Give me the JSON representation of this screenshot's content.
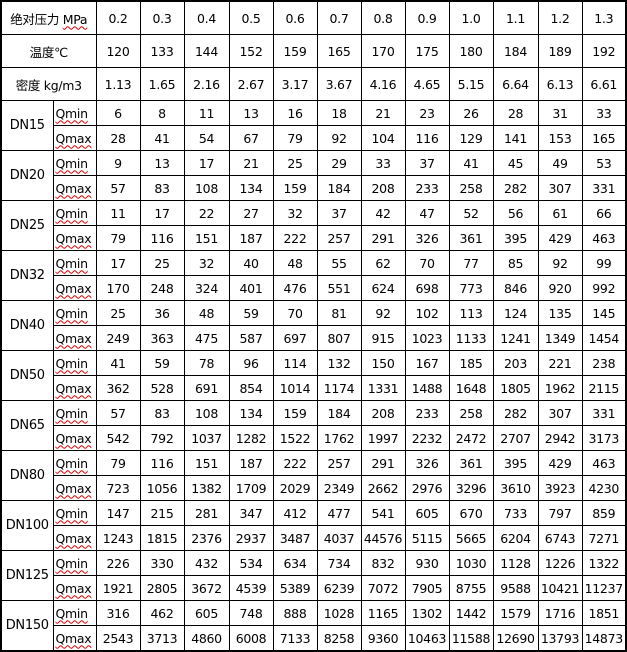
{
  "header": {
    "pressure_label_cn": "绝对压力",
    "pressure_unit": "MPa",
    "pressure": [
      "0.2",
      "0.3",
      "0.4",
      "0.5",
      "0.6",
      "0.7",
      "0.8",
      "0.9",
      "1.0",
      "1.1",
      "1.2",
      "1.3"
    ],
    "temperature_label": "温度℃",
    "temperature": [
      "120",
      "133",
      "144",
      "152",
      "159",
      "165",
      "170",
      "175",
      "180",
      "184",
      "189",
      "192"
    ],
    "density_label": "密度 kg/m3",
    "density": [
      "1.13",
      "1.65",
      "2.16",
      "2.67",
      "3.17",
      "3.67",
      "4.16",
      "4.65",
      "5.15",
      "6.64",
      "6.13",
      "6.61"
    ]
  },
  "qmin_label": "Qmin",
  "qmax_label": "Qmax",
  "rows": [
    {
      "dn": "DN15",
      "qmin": [
        "6",
        "8",
        "11",
        "13",
        "16",
        "18",
        "21",
        "23",
        "26",
        "28",
        "31",
        "33"
      ],
      "qmax": [
        "28",
        "41",
        "54",
        "67",
        "79",
        "92",
        "104",
        "116",
        "129",
        "141",
        "153",
        "165"
      ]
    },
    {
      "dn": "DN20",
      "qmin": [
        "9",
        "13",
        "17",
        "21",
        "25",
        "29",
        "33",
        "37",
        "41",
        "45",
        "49",
        "53"
      ],
      "qmax": [
        "57",
        "83",
        "108",
        "134",
        "159",
        "184",
        "208",
        "233",
        "258",
        "282",
        "307",
        "331"
      ]
    },
    {
      "dn": "DN25",
      "qmin": [
        "11",
        "17",
        "22",
        "27",
        "32",
        "37",
        "42",
        "47",
        "52",
        "56",
        "61",
        "66"
      ],
      "qmax": [
        "79",
        "116",
        "151",
        "187",
        "222",
        "257",
        "291",
        "326",
        "361",
        "395",
        "429",
        "463"
      ]
    },
    {
      "dn": "DN32",
      "qmin": [
        "17",
        "25",
        "32",
        "40",
        "48",
        "55",
        "62",
        "70",
        "77",
        "85",
        "92",
        "99"
      ],
      "qmax": [
        "170",
        "248",
        "324",
        "401",
        "476",
        "551",
        "624",
        "698",
        "773",
        "846",
        "920",
        "992"
      ]
    },
    {
      "dn": "DN40",
      "qmin": [
        "25",
        "36",
        "48",
        "59",
        "70",
        "81",
        "92",
        "102",
        "113",
        "124",
        "135",
        "145"
      ],
      "qmax": [
        "249",
        "363",
        "475",
        "587",
        "697",
        "807",
        "915",
        "1023",
        "1133",
        "1241",
        "1349",
        "1454"
      ]
    },
    {
      "dn": "DN50",
      "qmin": [
        "41",
        "59",
        "78",
        "96",
        "114",
        "132",
        "150",
        "167",
        "185",
        "203",
        "221",
        "238"
      ],
      "qmax": [
        "362",
        "528",
        "691",
        "854",
        "1014",
        "1174",
        "1331",
        "1488",
        "1648",
        "1805",
        "1962",
        "2115"
      ]
    },
    {
      "dn": "DN65",
      "qmin": [
        "57",
        "83",
        "108",
        "134",
        "159",
        "184",
        "208",
        "233",
        "258",
        "282",
        "307",
        "331"
      ],
      "qmax": [
        "542",
        "792",
        "1037",
        "1282",
        "1522",
        "1762",
        "1997",
        "2232",
        "2472",
        "2707",
        "2942",
        "3173"
      ]
    },
    {
      "dn": "DN80",
      "qmin": [
        "79",
        "116",
        "151",
        "187",
        "222",
        "257",
        "291",
        "326",
        "361",
        "395",
        "429",
        "463"
      ],
      "qmax": [
        "723",
        "1056",
        "1382",
        "1709",
        "2029",
        "2349",
        "2662",
        "2976",
        "3296",
        "3610",
        "3923",
        "4230"
      ]
    },
    {
      "dn": "DN100",
      "qmin": [
        "147",
        "215",
        "281",
        "347",
        "412",
        "477",
        "541",
        "605",
        "670",
        "733",
        "797",
        "859"
      ],
      "qmax": [
        "1243",
        "1815",
        "2376",
        "2937",
        "3487",
        "4037",
        "44576",
        "5115",
        "5665",
        "6204",
        "6743",
        "7271"
      ]
    },
    {
      "dn": "DN125",
      "qmin": [
        "226",
        "330",
        "432",
        "534",
        "634",
        "734",
        "832",
        "930",
        "1030",
        "1128",
        "1226",
        "1322"
      ],
      "qmax": [
        "1921",
        "2805",
        "3672",
        "4539",
        "5389",
        "6239",
        "7072",
        "7905",
        "8755",
        "9588",
        "10421",
        "11237"
      ]
    },
    {
      "dn": "DN150",
      "qmin": [
        "316",
        "462",
        "605",
        "748",
        "888",
        "1028",
        "1165",
        "1302",
        "1442",
        "1579",
        "1716",
        "1851"
      ],
      "qmax": [
        "2543",
        "3713",
        "4860",
        "6008",
        "7133",
        "8258",
        "9360",
        "10463",
        "11588",
        "12690",
        "13793",
        "14873"
      ]
    }
  ]
}
